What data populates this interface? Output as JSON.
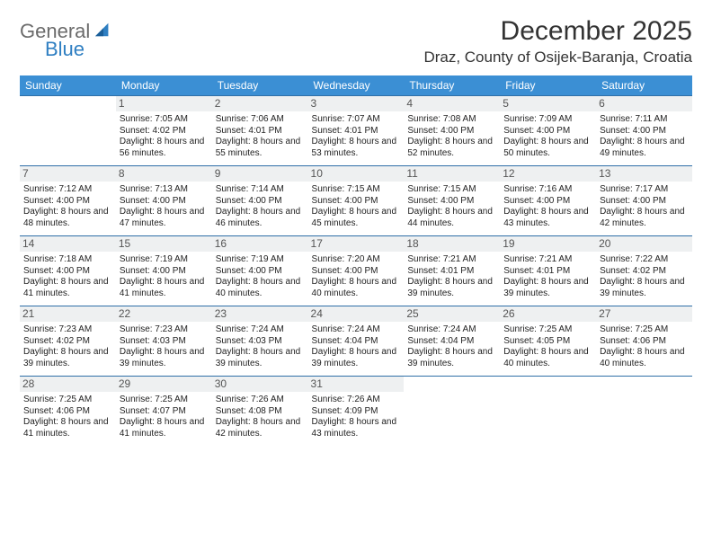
{
  "brand": {
    "line1": "General",
    "line2": "Blue"
  },
  "header": {
    "title": "December 2025",
    "location": "Draz, County of Osijek-Baranja, Croatia"
  },
  "colors": {
    "header_bg": "#3b8fd4",
    "header_text": "#ffffff",
    "row_border": "#2f6fa8",
    "daynum_bg": "#eef0f1",
    "body_text": "#222222",
    "title_text": "#333333",
    "logo_gray": "#6b6b6b",
    "logo_blue": "#2f7fc2"
  },
  "calendar": {
    "type": "table",
    "columns": [
      "Sunday",
      "Monday",
      "Tuesday",
      "Wednesday",
      "Thursday",
      "Friday",
      "Saturday"
    ],
    "weeks": [
      [
        null,
        {
          "n": "1",
          "sr": "7:05 AM",
          "ss": "4:02 PM",
          "dl": "8 hours and 56 minutes."
        },
        {
          "n": "2",
          "sr": "7:06 AM",
          "ss": "4:01 PM",
          "dl": "8 hours and 55 minutes."
        },
        {
          "n": "3",
          "sr": "7:07 AM",
          "ss": "4:01 PM",
          "dl": "8 hours and 53 minutes."
        },
        {
          "n": "4",
          "sr": "7:08 AM",
          "ss": "4:00 PM",
          "dl": "8 hours and 52 minutes."
        },
        {
          "n": "5",
          "sr": "7:09 AM",
          "ss": "4:00 PM",
          "dl": "8 hours and 50 minutes."
        },
        {
          "n": "6",
          "sr": "7:11 AM",
          "ss": "4:00 PM",
          "dl": "8 hours and 49 minutes."
        }
      ],
      [
        {
          "n": "7",
          "sr": "7:12 AM",
          "ss": "4:00 PM",
          "dl": "8 hours and 48 minutes."
        },
        {
          "n": "8",
          "sr": "7:13 AM",
          "ss": "4:00 PM",
          "dl": "8 hours and 47 minutes."
        },
        {
          "n": "9",
          "sr": "7:14 AM",
          "ss": "4:00 PM",
          "dl": "8 hours and 46 minutes."
        },
        {
          "n": "10",
          "sr": "7:15 AM",
          "ss": "4:00 PM",
          "dl": "8 hours and 45 minutes."
        },
        {
          "n": "11",
          "sr": "7:15 AM",
          "ss": "4:00 PM",
          "dl": "8 hours and 44 minutes."
        },
        {
          "n": "12",
          "sr": "7:16 AM",
          "ss": "4:00 PM",
          "dl": "8 hours and 43 minutes."
        },
        {
          "n": "13",
          "sr": "7:17 AM",
          "ss": "4:00 PM",
          "dl": "8 hours and 42 minutes."
        }
      ],
      [
        {
          "n": "14",
          "sr": "7:18 AM",
          "ss": "4:00 PM",
          "dl": "8 hours and 41 minutes."
        },
        {
          "n": "15",
          "sr": "7:19 AM",
          "ss": "4:00 PM",
          "dl": "8 hours and 41 minutes."
        },
        {
          "n": "16",
          "sr": "7:19 AM",
          "ss": "4:00 PM",
          "dl": "8 hours and 40 minutes."
        },
        {
          "n": "17",
          "sr": "7:20 AM",
          "ss": "4:00 PM",
          "dl": "8 hours and 40 minutes."
        },
        {
          "n": "18",
          "sr": "7:21 AM",
          "ss": "4:01 PM",
          "dl": "8 hours and 39 minutes."
        },
        {
          "n": "19",
          "sr": "7:21 AM",
          "ss": "4:01 PM",
          "dl": "8 hours and 39 minutes."
        },
        {
          "n": "20",
          "sr": "7:22 AM",
          "ss": "4:02 PM",
          "dl": "8 hours and 39 minutes."
        }
      ],
      [
        {
          "n": "21",
          "sr": "7:23 AM",
          "ss": "4:02 PM",
          "dl": "8 hours and 39 minutes."
        },
        {
          "n": "22",
          "sr": "7:23 AM",
          "ss": "4:03 PM",
          "dl": "8 hours and 39 minutes."
        },
        {
          "n": "23",
          "sr": "7:24 AM",
          "ss": "4:03 PM",
          "dl": "8 hours and 39 minutes."
        },
        {
          "n": "24",
          "sr": "7:24 AM",
          "ss": "4:04 PM",
          "dl": "8 hours and 39 minutes."
        },
        {
          "n": "25",
          "sr": "7:24 AM",
          "ss": "4:04 PM",
          "dl": "8 hours and 39 minutes."
        },
        {
          "n": "26",
          "sr": "7:25 AM",
          "ss": "4:05 PM",
          "dl": "8 hours and 40 minutes."
        },
        {
          "n": "27",
          "sr": "7:25 AM",
          "ss": "4:06 PM",
          "dl": "8 hours and 40 minutes."
        }
      ],
      [
        {
          "n": "28",
          "sr": "7:25 AM",
          "ss": "4:06 PM",
          "dl": "8 hours and 41 minutes."
        },
        {
          "n": "29",
          "sr": "7:25 AM",
          "ss": "4:07 PM",
          "dl": "8 hours and 41 minutes."
        },
        {
          "n": "30",
          "sr": "7:26 AM",
          "ss": "4:08 PM",
          "dl": "8 hours and 42 minutes."
        },
        {
          "n": "31",
          "sr": "7:26 AM",
          "ss": "4:09 PM",
          "dl": "8 hours and 43 minutes."
        },
        null,
        null,
        null
      ]
    ],
    "labels": {
      "sunrise": "Sunrise:",
      "sunset": "Sunset:",
      "daylight": "Daylight:"
    }
  }
}
